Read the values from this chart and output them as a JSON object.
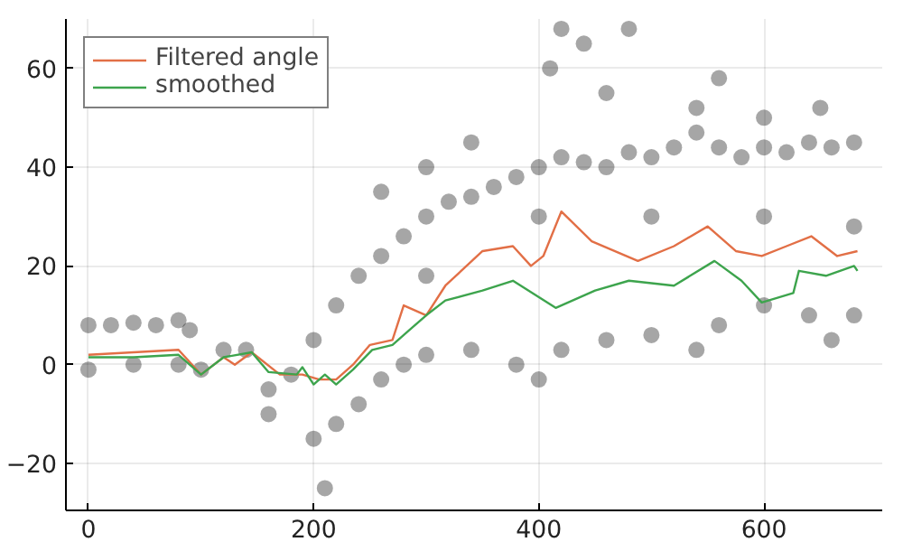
{
  "chart_data": {
    "type": "line",
    "xlim": [
      -20,
      705
    ],
    "ylim": [
      -29.5,
      70
    ],
    "xticks": [
      0,
      200,
      400,
      600
    ],
    "yticks": [
      {
        "value": -20,
        "label": "−20"
      },
      0,
      20,
      40,
      60
    ],
    "grid": true,
    "legend": "top left",
    "line_style": "solid",
    "series": [
      {
        "type": "scatter",
        "marker": "circle",
        "color": "#000000",
        "x": [
          0,
          20,
          40,
          60,
          80,
          90,
          100,
          120,
          140,
          160,
          180,
          200,
          220,
          240,
          260,
          280,
          300,
          320,
          340,
          360,
          380,
          400,
          420,
          440,
          460,
          480,
          500,
          520,
          540,
          560,
          580,
          600,
          620,
          640,
          660,
          680,
          0,
          40,
          80,
          160,
          200,
          210,
          220,
          240,
          260,
          280,
          300,
          340,
          380,
          400,
          420,
          460,
          500,
          540,
          560,
          600,
          640,
          660,
          680,
          410,
          420,
          440,
          460,
          480,
          540,
          560,
          600,
          650,
          340,
          300,
          260,
          300,
          400,
          500,
          600,
          680
        ],
        "values": [
          8,
          8,
          8.5,
          8,
          9,
          7,
          -1,
          3,
          3,
          -5,
          -2,
          5,
          12,
          18,
          22,
          26,
          30,
          33,
          34,
          36,
          38,
          40,
          42,
          41,
          40,
          43,
          42,
          44,
          47,
          44,
          42,
          44,
          43,
          45,
          44,
          45,
          -1,
          0,
          0,
          -10,
          -15,
          -25,
          -12,
          -8,
          -3,
          0,
          2,
          3,
          0,
          -3,
          3,
          5,
          6,
          3,
          8,
          12,
          10,
          5,
          10,
          60,
          68,
          65,
          55,
          68,
          52,
          58,
          50,
          52,
          45,
          40,
          35,
          18,
          30,
          30,
          30,
          28
        ]
      },
      {
        "name": "Filtered angle",
        "color": "#e26f46",
        "x": [
          0,
          40,
          80,
          100,
          120,
          130,
          145,
          170,
          190,
          205,
          220,
          235,
          250,
          270,
          280,
          300,
          317,
          350,
          377,
          393,
          404,
          420,
          447,
          488,
          520,
          550,
          575,
          598,
          620,
          642,
          665,
          683
        ],
        "values": [
          2,
          2.5,
          3,
          -2,
          1.5,
          0,
          2.5,
          -2,
          -2,
          -3,
          -3,
          0,
          4,
          5,
          12,
          10,
          16,
          23,
          24,
          20,
          22,
          31,
          25,
          21,
          24,
          28,
          23,
          22,
          24,
          26,
          22,
          23
        ]
      },
      {
        "name": "smoothed",
        "color": "#3da44d",
        "x": [
          0,
          40,
          80,
          100,
          120,
          145,
          160,
          185,
          190,
          200,
          210,
          220,
          235,
          252,
          270,
          285,
          300,
          317,
          350,
          377,
          415,
          450,
          480,
          520,
          556,
          580,
          598,
          626,
          631,
          655,
          680,
          683
        ],
        "values": [
          1.5,
          1.5,
          2,
          -2,
          1.5,
          2.5,
          -1.5,
          -2,
          -0.5,
          -4,
          -2,
          -4,
          -1,
          3,
          4,
          7,
          10,
          13,
          15,
          17,
          11.5,
          15,
          17,
          16,
          21,
          17,
          12.6,
          14.5,
          19,
          18,
          20,
          19
        ]
      }
    ]
  }
}
